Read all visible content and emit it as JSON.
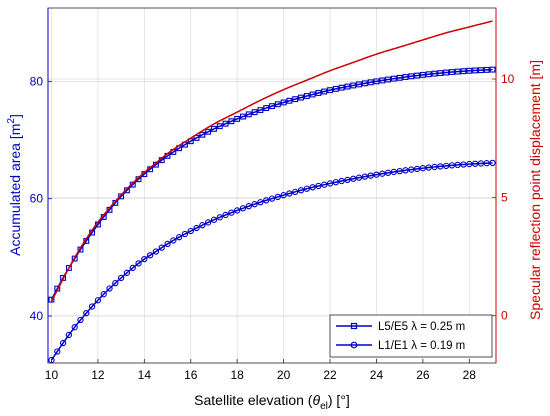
{
  "chart_data": {
    "type": "line",
    "xlabel": {
      "prefix": "Satellite elevation (",
      "theta": "θ",
      "sub": "el",
      "suffix": ") [°]"
    },
    "ylabel_left": {
      "main": "Accumulated area [m",
      "sup": "2",
      "end": "]"
    },
    "ylabel_right": "Specular reflection point displacement [m]",
    "xlim": [
      9.85,
      29.15
    ],
    "ylim_left": [
      32,
      92.5
    ],
    "ylim_right": [
      -2,
      13
    ],
    "x_ticks": [
      10,
      12,
      14,
      16,
      18,
      20,
      22,
      24,
      26,
      28
    ],
    "x_tick_labels": [
      "10",
      "12",
      "14",
      "16",
      "18",
      "20",
      "22",
      "24",
      "26",
      "28"
    ],
    "y_left_ticks": [
      40,
      60,
      80
    ],
    "y_left_tick_labels": [
      "40",
      "60",
      "80"
    ],
    "y_right_ticks": [
      0,
      5,
      10
    ],
    "y_right_tick_labels": [
      "0",
      "5",
      "10"
    ],
    "grid": true,
    "legend_position": "bottom-right",
    "colors": {
      "left_series": "#0000c8",
      "right_series": "#cc0000",
      "grid": "#dcdcdc"
    },
    "x_samples": [
      10,
      10.5,
      11,
      11.5,
      12,
      12.5,
      13,
      13.5,
      14,
      14.5,
      15,
      16,
      17,
      18,
      19,
      20,
      21,
      22,
      23,
      24,
      25,
      26,
      27,
      28,
      29
    ],
    "series": [
      {
        "name": "L5/E5 λ = 0.25 m",
        "axis": "left",
        "marker": "square",
        "values": [
          42.8,
          46.5,
          49.8,
          52.8,
          55.6,
          58.1,
          60.4,
          62.4,
          64.2,
          65.8,
          67.3,
          69.8,
          71.9,
          73.6,
          75.1,
          76.4,
          77.5,
          78.5,
          79.3,
          80.0,
          80.6,
          81.1,
          81.5,
          81.8,
          82.0
        ]
      },
      {
        "name": "L1/E1 λ = 0.19 m",
        "axis": "left",
        "marker": "circle",
        "values": [
          32.5,
          35.4,
          38.1,
          40.5,
          42.7,
          44.7,
          46.5,
          48.2,
          49.7,
          51.0,
          52.3,
          54.5,
          56.4,
          58.0,
          59.4,
          60.6,
          61.7,
          62.6,
          63.4,
          64.1,
          64.7,
          65.2,
          65.6,
          65.9,
          66.1
        ]
      },
      {
        "axis": "right",
        "marker": "none",
        "values": [
          0.6,
          1.55,
          2.45,
          3.25,
          3.95,
          4.55,
          5.1,
          5.6,
          6.05,
          6.45,
          6.85,
          7.5,
          8.1,
          8.6,
          9.1,
          9.55,
          9.95,
          10.35,
          10.7,
          11.05,
          11.35,
          11.65,
          11.95,
          12.2,
          12.45
        ]
      }
    ],
    "legend": [
      {
        "label": "L5/E5 ",
        "lambda": "λ",
        "rest": " = 0.25 m"
      },
      {
        "label": "L1/E1 ",
        "lambda": "λ",
        "rest": " = 0.19 m"
      }
    ]
  }
}
